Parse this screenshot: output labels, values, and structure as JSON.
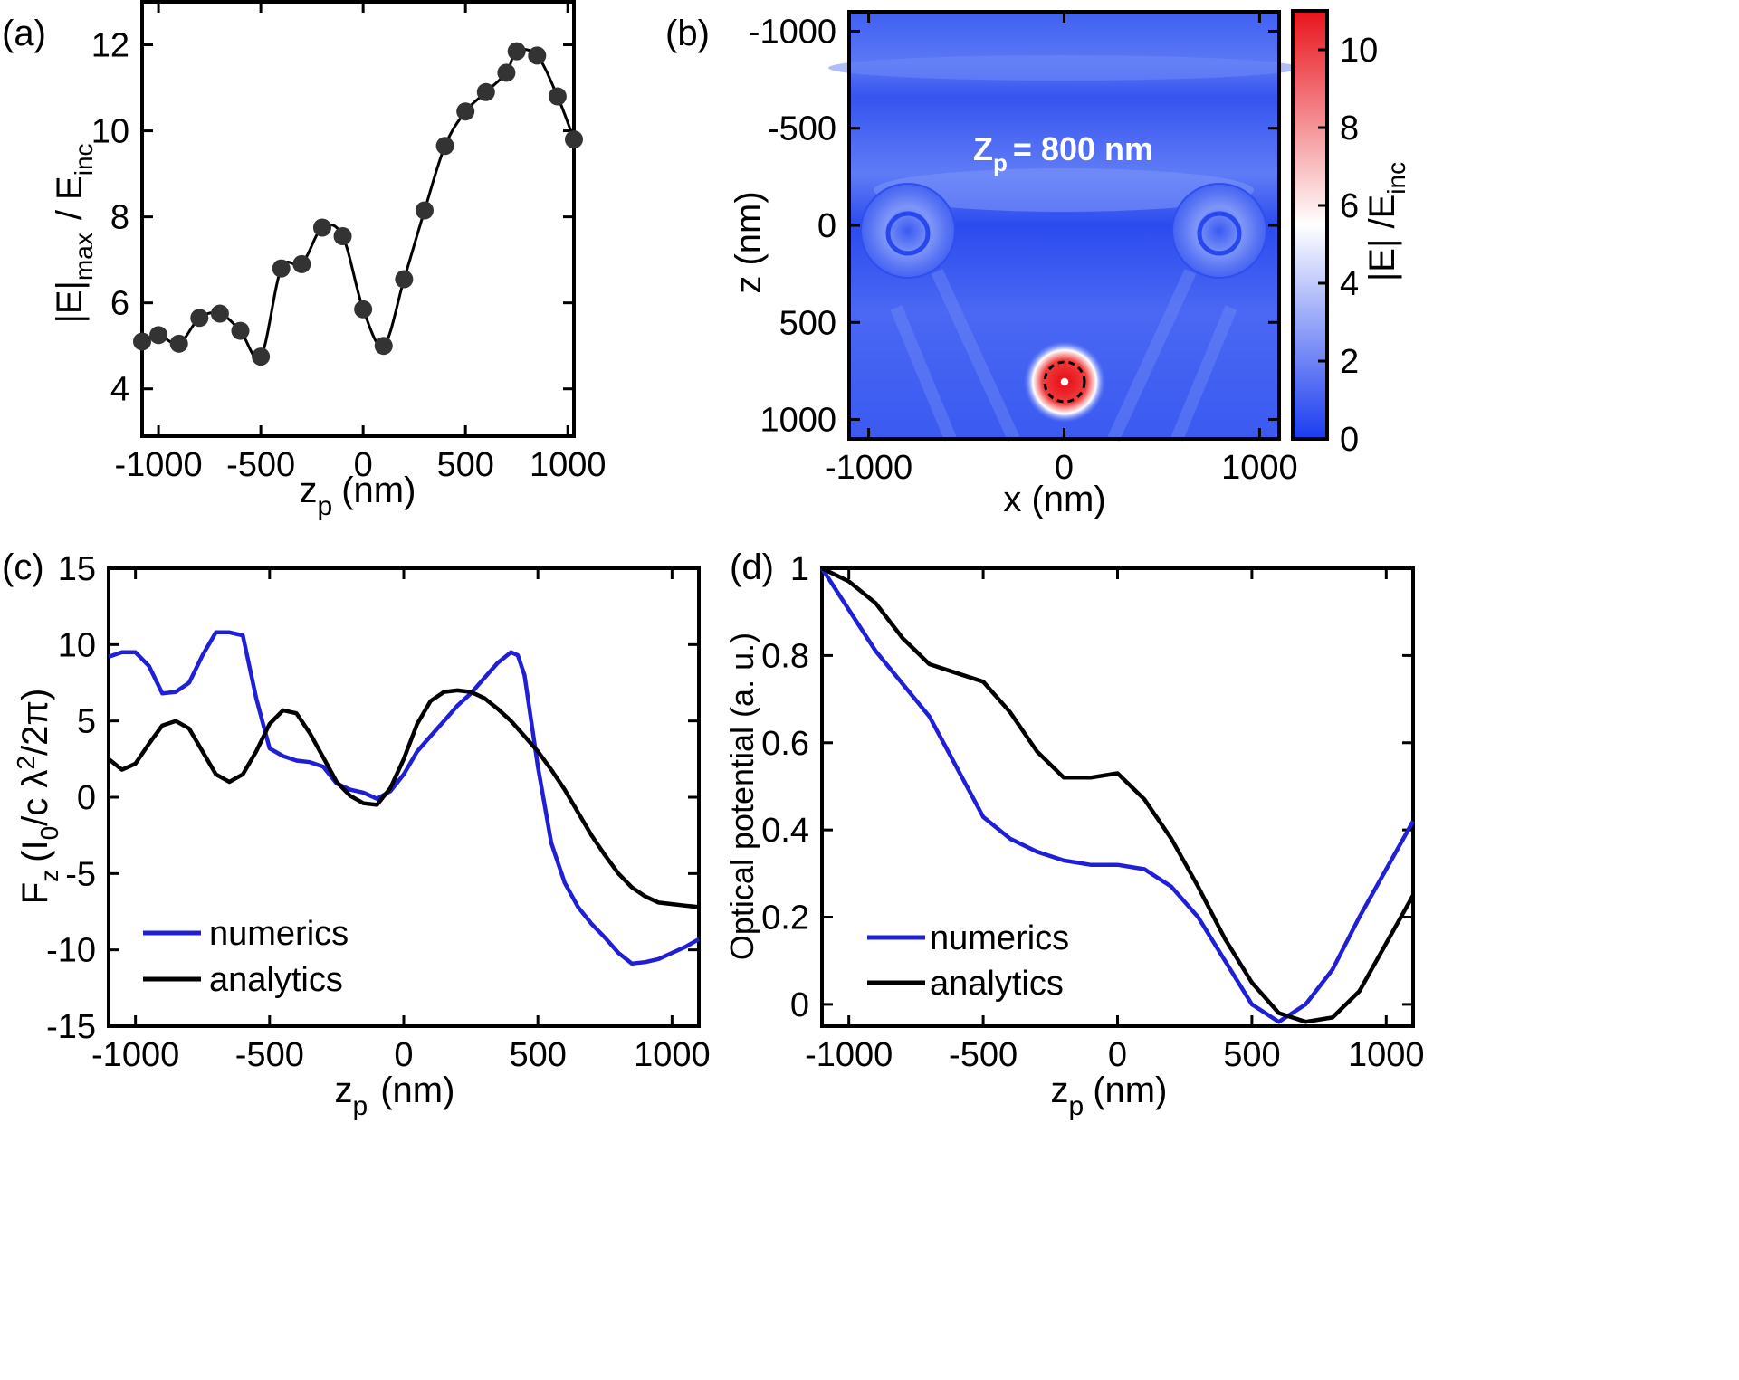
{
  "chart_data": [
    {
      "panel": "(a)",
      "type": "line",
      "xlabel": "z",
      "xlabel_sub": "p",
      "xlabel_unit": "(nm)",
      "ylabel_parts": [
        "|E|",
        "max",
        "/ E",
        "inc"
      ],
      "xlim": [
        -1080,
        1030
      ],
      "ylim": [
        2.9,
        13.0
      ],
      "xticks": [
        -1000,
        -500,
        0,
        500,
        1000
      ],
      "yticks": [
        4,
        6,
        8,
        10,
        12
      ],
      "grid": false,
      "line_color": "#000000",
      "marker_color": "#333333",
      "series": [
        {
          "x": [
            -1080,
            -1000,
            -900,
            -800,
            -700,
            -600,
            -500,
            -400,
            -300,
            -200,
            -100,
            0,
            100,
            200,
            300,
            400,
            500,
            600,
            700,
            750,
            850,
            950,
            1030
          ],
          "y": [
            5.1,
            5.25,
            5.05,
            5.65,
            5.75,
            5.35,
            4.75,
            6.8,
            6.9,
            7.75,
            7.55,
            5.85,
            5.0,
            6.55,
            8.15,
            9.65,
            10.45,
            10.9,
            11.35,
            11.85,
            11.75,
            10.8,
            9.8
          ]
        }
      ]
    },
    {
      "panel": "(b)",
      "type": "heatmap",
      "xlabel": "x (nm)",
      "ylabel": "z (nm)",
      "annotation": "Z",
      "annotation_sub": "p",
      "annotation_value": "=  800 nm",
      "colorbar_label": "|E| /E",
      "colorbar_label_sub": "inc",
      "colorbar_ticks": [
        0,
        2,
        4,
        6,
        8,
        10
      ],
      "colorbar_range": [
        0,
        11
      ],
      "colormap": [
        "#1a3cf0",
        "#ffffff",
        "#e8141c"
      ],
      "xlim": [
        -1100,
        1100
      ],
      "ylim": [
        -1100,
        1100
      ],
      "xticks": [
        -1000,
        0,
        1000
      ],
      "yticks": [
        -1000,
        -500,
        0,
        500,
        1000
      ],
      "y_inverted": true,
      "features": [
        {
          "kind": "particle",
          "x": 0,
          "z": 800,
          "peak": 11
        },
        {
          "kind": "sphere",
          "x": -800,
          "z": 0
        },
        {
          "kind": "sphere",
          "x": 800,
          "z": 0
        }
      ]
    },
    {
      "panel": "(c)",
      "type": "line",
      "xlabel": "z",
      "xlabel_sub": "p",
      "xlabel_unit": "(nm)",
      "ylabel_parts": [
        "F",
        "z",
        "(I",
        "0",
        "/c λ",
        "2",
        "/2π)"
      ],
      "xlim": [
        -1100,
        1100
      ],
      "ylim": [
        -15,
        15
      ],
      "xticks": [
        -1000,
        -500,
        0,
        500,
        1000
      ],
      "yticks": [
        -15,
        -10,
        -5,
        0,
        5,
        10,
        15
      ],
      "grid": false,
      "legend": "bottom-left",
      "series": [
        {
          "name": "numerics",
          "color": "#1f1fd8",
          "x": [
            -1100,
            -1050,
            -1000,
            -950,
            -900,
            -850,
            -800,
            -750,
            -700,
            -650,
            -600,
            -550,
            -500,
            -450,
            -400,
            -350,
            -300,
            -250,
            -200,
            -150,
            -100,
            -50,
            0,
            50,
            100,
            150,
            200,
            250,
            300,
            350,
            400,
            425,
            450,
            500,
            550,
            600,
            650,
            700,
            750,
            800,
            850,
            900,
            950,
            1000,
            1050,
            1100
          ],
          "y": [
            9.2,
            9.5,
            9.5,
            8.6,
            6.8,
            6.9,
            7.5,
            9.3,
            10.8,
            10.8,
            10.6,
            6.5,
            3.2,
            2.7,
            2.4,
            2.3,
            2.0,
            0.9,
            0.5,
            0.3,
            -0.1,
            0.4,
            1.5,
            3.0,
            4.0,
            5.0,
            6.0,
            6.8,
            7.8,
            8.8,
            9.5,
            9.3,
            8.0,
            2.0,
            -3.0,
            -5.6,
            -7.2,
            -8.3,
            -9.2,
            -10.2,
            -10.9,
            -10.8,
            -10.6,
            -10.2,
            -9.8,
            -9.3
          ]
        },
        {
          "name": "analytics",
          "color": "#000000",
          "x": [
            -1100,
            -1050,
            -1000,
            -950,
            -900,
            -850,
            -800,
            -750,
            -700,
            -650,
            -600,
            -550,
            -500,
            -450,
            -400,
            -350,
            -300,
            -250,
            -200,
            -150,
            -100,
            -50,
            0,
            50,
            100,
            150,
            200,
            250,
            300,
            350,
            400,
            450,
            500,
            550,
            600,
            650,
            700,
            750,
            800,
            850,
            900,
            950,
            1000,
            1050,
            1100
          ],
          "y": [
            2.5,
            1.8,
            2.2,
            3.5,
            4.7,
            5.0,
            4.5,
            3.0,
            1.5,
            1.0,
            1.5,
            3.0,
            4.8,
            5.7,
            5.5,
            4.2,
            2.6,
            1.0,
            0.1,
            -0.4,
            -0.5,
            0.6,
            2.5,
            4.8,
            6.3,
            6.9,
            7.0,
            6.9,
            6.5,
            5.8,
            5.0,
            4.0,
            3.0,
            1.8,
            0.5,
            -1.0,
            -2.5,
            -3.8,
            -5.0,
            -5.9,
            -6.5,
            -6.9,
            -7.0,
            -7.1,
            -7.2
          ]
        }
      ]
    },
    {
      "panel": "(d)",
      "type": "line",
      "xlabel": "z",
      "xlabel_sub": "p",
      "xlabel_unit": "(nm)",
      "ylabel": "Optical potential (a. u.)",
      "xlim": [
        -1100,
        1100
      ],
      "ylim": [
        -0.05,
        1.0
      ],
      "xticks": [
        -1000,
        -500,
        0,
        500,
        1000
      ],
      "yticks": [
        0,
        0.2,
        0.4,
        0.6,
        0.8,
        1
      ],
      "ytick_labels": [
        "0",
        "0.2",
        "0.4",
        "0.6",
        "0.8",
        "1"
      ],
      "grid": false,
      "legend": "bottom-left",
      "series": [
        {
          "name": "numerics",
          "color": "#1f1fd8",
          "x": [
            -1100,
            -900,
            -700,
            -500,
            -400,
            -300,
            -200,
            -100,
            0,
            100,
            200,
            300,
            400,
            500,
            600,
            700,
            800,
            900,
            1000,
            1100
          ],
          "y": [
            1.0,
            0.81,
            0.66,
            0.43,
            0.38,
            0.35,
            0.33,
            0.32,
            0.32,
            0.31,
            0.27,
            0.2,
            0.1,
            0.0,
            -0.04,
            0.0,
            0.08,
            0.2,
            0.31,
            0.42
          ]
        },
        {
          "name": "analytics",
          "color": "#000000",
          "x": [
            -1100,
            -1000,
            -900,
            -800,
            -700,
            -600,
            -500,
            -400,
            -300,
            -200,
            -100,
            0,
            100,
            200,
            300,
            400,
            500,
            600,
            700,
            800,
            900,
            1000,
            1100
          ],
          "y": [
            1.0,
            0.97,
            0.92,
            0.84,
            0.78,
            0.76,
            0.74,
            0.67,
            0.58,
            0.52,
            0.52,
            0.53,
            0.47,
            0.38,
            0.27,
            0.15,
            0.05,
            -0.02,
            -0.04,
            -0.03,
            0.03,
            0.14,
            0.25
          ]
        }
      ]
    }
  ],
  "panels": {
    "a": {
      "label": "(a)"
    },
    "b": {
      "label": "(b)"
    },
    "c": {
      "label": "(c)"
    },
    "d": {
      "label": "(d)"
    }
  }
}
